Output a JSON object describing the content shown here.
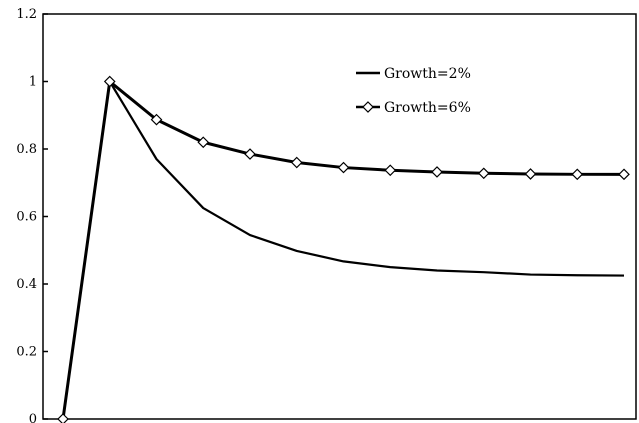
{
  "chart_data": {
    "type": "line",
    "title": "",
    "xlabel": "",
    "ylabel": "",
    "x": [
      0,
      1,
      2,
      3,
      4,
      5,
      6,
      7,
      8,
      9,
      10,
      11,
      12
    ],
    "ylim": [
      0,
      1.2
    ],
    "yticks": [
      "0",
      "0.2",
      "0.4",
      "0.6",
      "0.8",
      "1",
      "1.2"
    ],
    "ytick_values": [
      0,
      0.2,
      0.4,
      0.6,
      0.8,
      1.0,
      1.2
    ],
    "grid": false,
    "legend_position": "top-right",
    "series": [
      {
        "name": "Growth=2%",
        "marker": "none",
        "values": [
          0,
          1.0,
          0.77,
          0.625,
          0.545,
          0.498,
          0.467,
          0.45,
          0.44,
          0.435,
          0.428,
          0.426,
          0.425
        ]
      },
      {
        "name": "Growth=6%",
        "marker": "diamond",
        "values": [
          0,
          1.0,
          0.887,
          0.82,
          0.785,
          0.76,
          0.745,
          0.737,
          0.732,
          0.728,
          0.726,
          0.725,
          0.725
        ]
      }
    ]
  },
  "colors": {
    "line": "#000000",
    "axis": "#000000",
    "marker_fill": "#ffffff"
  }
}
